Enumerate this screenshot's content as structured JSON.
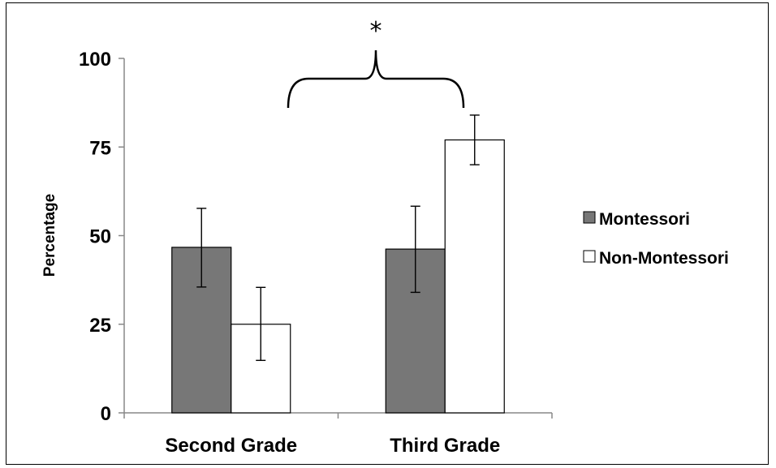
{
  "chart_data": {
    "type": "bar",
    "title": "",
    "xlabel": "",
    "ylabel": "Percentage",
    "categories": [
      "Second Grade",
      "Third Grade"
    ],
    "ylim": [
      0,
      100
    ],
    "yticks": [
      "0",
      "25",
      "50",
      "75",
      "100"
    ],
    "grid": false,
    "legend_position": "right",
    "series": [
      {
        "name": "Montessori",
        "color": "#777777",
        "values": [
          46.7,
          46.2
        ],
        "error_low": [
          35.5,
          34.0
        ],
        "error_high": [
          57.7,
          58.3
        ]
      },
      {
        "name": "Non-Montessori",
        "color": "#ffffff",
        "values": [
          25.0,
          77.0
        ],
        "error_low": [
          14.8,
          70.0
        ],
        "error_high": [
          35.4,
          84.0
        ]
      }
    ],
    "annotations": [
      {
        "text": "*",
        "type": "significance-brace",
        "spans": [
          "Second Grade",
          "Third Grade"
        ]
      }
    ]
  }
}
